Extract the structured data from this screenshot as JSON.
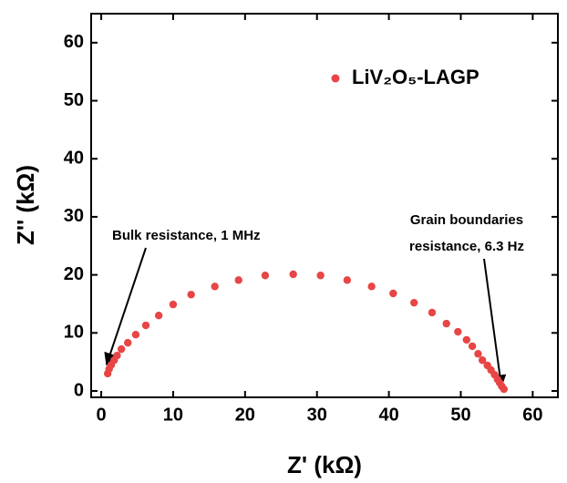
{
  "chart_data": {
    "type": "scatter",
    "xlabel": "Z' (kΩ)",
    "ylabel": "Z'' (kΩ)",
    "xlim": [
      -1.4,
      63.5
    ],
    "ylim": [
      -1.1,
      65
    ],
    "xticks": [
      0,
      10,
      20,
      30,
      40,
      50,
      60
    ],
    "yticks": [
      0,
      10,
      20,
      30,
      40,
      50,
      60
    ],
    "legend_position": "upper right",
    "annotations": [
      "Bulk resistance, 1 MHz",
      "Grain boundaries",
      "resistance, 6.3 Hz"
    ],
    "series": [
      {
        "name": "LiV₂O₅-LAGP",
        "color": "#e84545",
        "x": [
          0.9,
          1.1,
          1.4,
          1.8,
          2.2,
          2.8,
          3.7,
          4.8,
          6.2,
          8.0,
          10.0,
          12.5,
          15.8,
          19.1,
          22.8,
          26.7,
          30.5,
          34.2,
          37.6,
          40.6,
          43.5,
          46.0,
          48.0,
          49.6,
          50.8,
          51.6,
          52.4,
          53.0,
          53.7,
          54.2,
          54.7,
          55.1,
          55.4,
          55.7,
          56.0
        ],
        "values": [
          3.0,
          3.8,
          4.5,
          5.3,
          6.1,
          7.2,
          8.3,
          9.7,
          11.3,
          13.0,
          14.9,
          16.6,
          18.0,
          19.1,
          19.9,
          20.1,
          19.9,
          19.1,
          18.0,
          16.8,
          15.2,
          13.5,
          11.6,
          10.2,
          8.8,
          7.7,
          6.4,
          5.3,
          4.4,
          3.6,
          2.8,
          2.0,
          1.4,
          0.8,
          0.3
        ]
      }
    ]
  }
}
